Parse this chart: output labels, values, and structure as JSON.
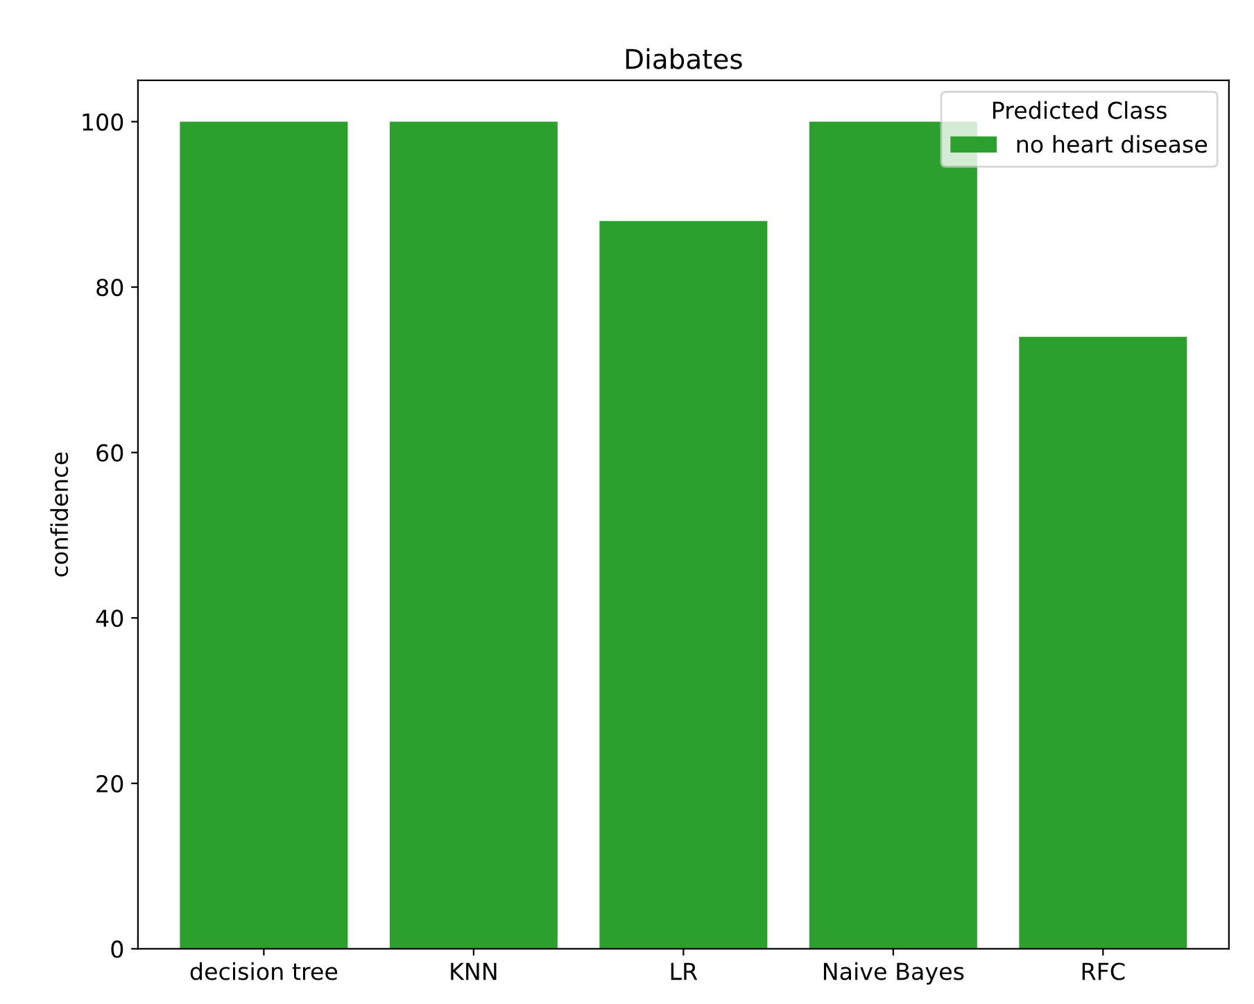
{
  "chart_data": {
    "type": "bar",
    "title": "Diabates",
    "ylabel": "confidence",
    "legend_title": "Predicted Class",
    "categories": [
      "decision tree",
      "KNN",
      "LR",
      "Naive Bayes",
      "RFC"
    ],
    "series": [
      {
        "name": "no heart disease",
        "color": "#2ca02c",
        "values": [
          100,
          100,
          88,
          100,
          74
        ]
      }
    ],
    "ylim": [
      0,
      105
    ],
    "yticks": [
      0,
      20,
      40,
      60,
      80,
      100
    ],
    "grid": false,
    "legend": "top right"
  }
}
